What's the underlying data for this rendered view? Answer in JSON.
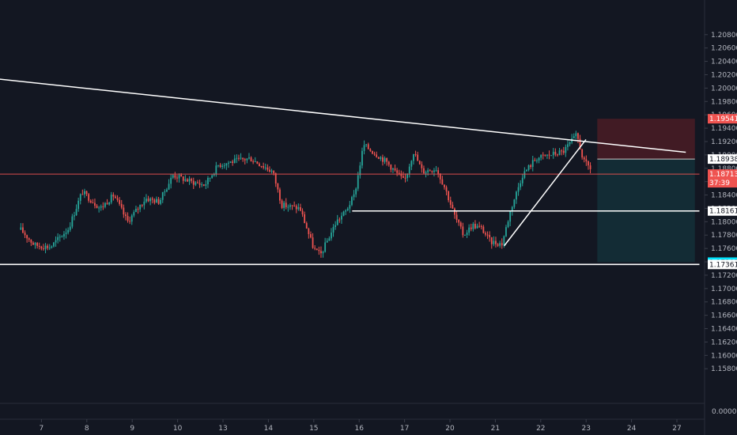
{
  "chart_data": {
    "type": "candlestick",
    "title": "",
    "xlabel": "",
    "ylabel": "",
    "grid": false,
    "colors": {
      "background": "#131722",
      "up": "#26a69a",
      "down": "#ef5350",
      "text": "#b2b5be",
      "line": "#ffffff",
      "current_price_line": "#ef5350",
      "risk_zone": "#4a1c24",
      "reward_zone": "#143038",
      "target_tag": "#00e5ff",
      "stop_tag": "#ef5350",
      "separator": "#2a2e39"
    },
    "y_axis": {
      "min": 1.154,
      "max": 1.212,
      "ticks": [
        "1.20800",
        "1.20600",
        "1.20400",
        "1.20200",
        "1.20000",
        "1.19800",
        "1.19600",
        "1.19400",
        "1.19200",
        "1.19000",
        "1.18800",
        "1.18600",
        "1.18400",
        "1.18200",
        "1.18000",
        "1.17800",
        "1.17600",
        "1.17400",
        "1.17200",
        "1.17000",
        "1.16800",
        "1.16600",
        "1.16400",
        "1.16200",
        "1.16000",
        "1.15800"
      ]
    },
    "x_axis": {
      "ticks": [
        {
          "label": "7",
          "day": 1
        },
        {
          "label": "8",
          "day": 2
        },
        {
          "label": "9",
          "day": 3
        },
        {
          "label": "10",
          "day": 4
        },
        {
          "label": "13",
          "day": 5
        },
        {
          "label": "14",
          "day": 6
        },
        {
          "label": "15",
          "day": 7
        },
        {
          "label": "16",
          "day": 8
        },
        {
          "label": "17",
          "day": 9
        },
        {
          "label": "20",
          "day": 10
        },
        {
          "label": "21",
          "day": 11
        },
        {
          "label": "22",
          "day": 12
        },
        {
          "label": "23",
          "day": 13
        },
        {
          "label": "24",
          "day": 14
        },
        {
          "label": "27",
          "day": 15
        }
      ]
    },
    "path_points": [
      {
        "day": 0.25,
        "price": 1.1788
      },
      {
        "day": 0.55,
        "price": 1.1765
      },
      {
        "day": 0.9,
        "price": 1.1762
      },
      {
        "day": 1.3,
        "price": 1.179
      },
      {
        "day": 1.6,
        "price": 1.1845
      },
      {
        "day": 2.0,
        "price": 1.182
      },
      {
        "day": 2.3,
        "price": 1.184
      },
      {
        "day": 2.6,
        "price": 1.18
      },
      {
        "day": 3.0,
        "price": 1.1835
      },
      {
        "day": 3.3,
        "price": 1.183
      },
      {
        "day": 3.6,
        "price": 1.187
      },
      {
        "day": 4.0,
        "price": 1.186
      },
      {
        "day": 4.3,
        "price": 1.1855
      },
      {
        "day": 4.6,
        "price": 1.1885
      },
      {
        "day": 4.9,
        "price": 1.189
      },
      {
        "day": 5.3,
        "price": 1.1895
      },
      {
        "day": 5.8,
        "price": 1.1875
      },
      {
        "day": 6.0,
        "price": 1.1825
      },
      {
        "day": 6.4,
        "price": 1.182
      },
      {
        "day": 6.7,
        "price": 1.176
      },
      {
        "day": 6.85,
        "price": 1.175
      },
      {
        "day": 7.2,
        "price": 1.18
      },
      {
        "day": 7.4,
        "price": 1.1815
      },
      {
        "day": 7.6,
        "price": 1.184
      },
      {
        "day": 7.8,
        "price": 1.1915
      },
      {
        "day": 8.0,
        "price": 1.1905
      },
      {
        "day": 8.3,
        "price": 1.189
      },
      {
        "day": 8.5,
        "price": 1.1875
      },
      {
        "day": 8.7,
        "price": 1.186
      },
      {
        "day": 8.9,
        "price": 1.1905
      },
      {
        "day": 9.1,
        "price": 1.1875
      },
      {
        "day": 9.4,
        "price": 1.188
      },
      {
        "day": 9.6,
        "price": 1.185
      },
      {
        "day": 9.8,
        "price": 1.181
      },
      {
        "day": 10.0,
        "price": 1.178
      },
      {
        "day": 10.2,
        "price": 1.1795
      },
      {
        "day": 10.4,
        "price": 1.179
      },
      {
        "day": 10.6,
        "price": 1.177
      },
      {
        "day": 10.85,
        "price": 1.1767
      },
      {
        "day": 11.05,
        "price": 1.182
      },
      {
        "day": 11.3,
        "price": 1.187
      },
      {
        "day": 11.6,
        "price": 1.1895
      },
      {
        "day": 11.9,
        "price": 1.19
      },
      {
        "day": 12.2,
        "price": 1.1905
      },
      {
        "day": 12.5,
        "price": 1.193
      },
      {
        "day": 12.65,
        "price": 1.189
      },
      {
        "day": 12.8,
        "price": 1.188
      }
    ],
    "trendlines": [
      {
        "name": "descending-trendline",
        "from": {
          "day": -0.3,
          "price": 1.2014
        },
        "to": {
          "day": 14.9,
          "price": 1.1904
        }
      },
      {
        "name": "rising-trendline",
        "from": {
          "day": 10.9,
          "price": 1.1764
        },
        "to": {
          "day": 12.7,
          "price": 1.1923
        }
      }
    ],
    "levels": [
      {
        "name": "resistance-level-118161",
        "price": 1.18161,
        "from_day": 7.55,
        "to_day": 15.2
      },
      {
        "name": "support-level-117361",
        "price": 1.17361,
        "from_day": -0.3,
        "to_day": 15.2
      },
      {
        "name": "current-price-line",
        "price": 1.18713,
        "from_day": -0.3,
        "to_day": 15.2
      }
    ],
    "position": {
      "from_day": 12.95,
      "to_day": 15.1,
      "stop": 1.19541,
      "entry": 1.18938,
      "target": 1.17395
    },
    "price_tags": [
      {
        "name": "stop-price-tag",
        "label": "1.19541",
        "price": 1.19541,
        "style": "red"
      },
      {
        "name": "entry-price-tag",
        "label": "1.18938",
        "price": 1.18938,
        "style": "light"
      },
      {
        "name": "current-price-tag",
        "label": "1.18713",
        "price": 1.18713,
        "style": "red"
      },
      {
        "name": "countdown-tag",
        "label": "37:39",
        "price": 1.18583,
        "style": "red"
      },
      {
        "name": "level-price-tag",
        "label": "1.18161",
        "price": 1.18161,
        "style": "light"
      },
      {
        "name": "target-price-tag",
        "label": "1.17395",
        "price": 1.17395,
        "style": "cyan"
      },
      {
        "name": "support-price-tag",
        "label": "1.17361",
        "price": 1.17361,
        "style": "light"
      }
    ],
    "lower_pane": {
      "tick": "0.00000"
    }
  }
}
